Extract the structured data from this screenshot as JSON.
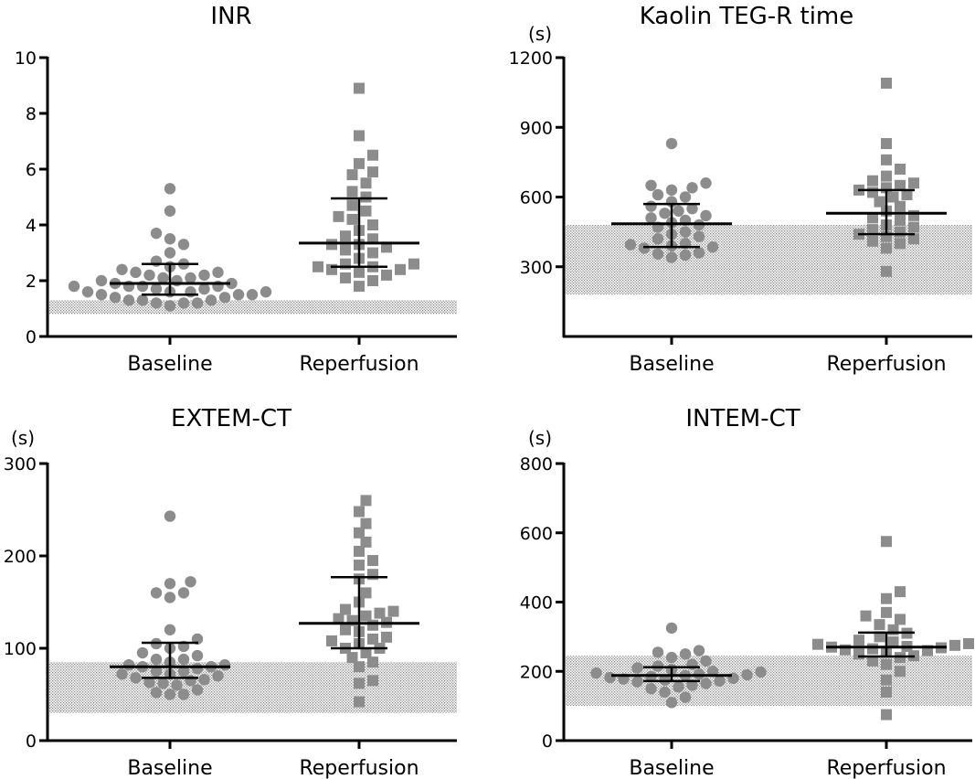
{
  "chart_data": [
    {
      "type": "scatter",
      "title": "INR",
      "ylabel": "",
      "ylim": [
        0,
        10
      ],
      "yticks": [
        0,
        2,
        4,
        6,
        8,
        10
      ],
      "categories": [
        "Baseline",
        "Reperfusion"
      ],
      "reference_range": [
        0.8,
        1.3
      ],
      "series": [
        {
          "values": [
            1.1,
            1.2,
            1.2,
            1.2,
            1.3,
            1.3,
            1.3,
            1.4,
            1.4,
            1.5,
            1.5,
            1.5,
            1.6,
            1.6,
            1.6,
            1.6,
            1.7,
            1.7,
            1.8,
            1.8,
            1.8,
            1.8,
            1.9,
            1.9,
            2.0,
            2.0,
            2.1,
            2.1,
            2.2,
            2.2,
            2.3,
            2.3,
            2.4,
            2.5,
            2.6,
            2.7,
            3.0,
            3.3,
            3.5,
            3.7,
            4.5,
            5.3
          ],
          "median": 1.9,
          "iqr": [
            1.5,
            2.6
          ]
        },
        {
          "values": [
            1.8,
            2.0,
            2.1,
            2.2,
            2.3,
            2.4,
            2.4,
            2.5,
            2.5,
            2.6,
            2.6,
            2.8,
            3.0,
            3.1,
            3.2,
            3.3,
            3.3,
            3.5,
            3.6,
            3.8,
            4.0,
            4.2,
            4.3,
            4.5,
            4.7,
            5.0,
            5.2,
            5.5,
            5.8,
            5.9,
            6.2,
            6.5,
            7.2,
            8.9
          ],
          "median": 3.35,
          "iqr": [
            2.5,
            4.95
          ]
        }
      ]
    },
    {
      "type": "scatter",
      "title": "Kaolin TEG-R time",
      "ylabel": "(s)",
      "ylim": [
        0,
        1200
      ],
      "yticks": [
        300,
        600,
        900,
        1200
      ],
      "categories": [
        "Baseline",
        "Reperfusion"
      ],
      "reference_range": [
        180,
        480
      ],
      "series": [
        {
          "values": [
            340,
            350,
            355,
            360,
            380,
            385,
            390,
            395,
            400,
            420,
            430,
            440,
            450,
            470,
            480,
            490,
            500,
            510,
            520,
            530,
            540,
            550,
            560,
            580,
            600,
            610,
            630,
            640,
            650,
            660,
            830
          ],
          "median": 485,
          "iqr": [
            385,
            570
          ]
        },
        {
          "values": [
            280,
            380,
            400,
            410,
            420,
            430,
            440,
            450,
            460,
            470,
            480,
            500,
            510,
            520,
            540,
            560,
            580,
            600,
            610,
            620,
            630,
            640,
            650,
            660,
            670,
            690,
            720,
            760,
            830,
            1090
          ],
          "median": 530,
          "iqr": [
            440,
            630
          ]
        }
      ]
    },
    {
      "type": "scatter",
      "title": "EXTEM-CT",
      "ylabel": "(s)",
      "ylim": [
        0,
        300
      ],
      "yticks": [
        0,
        100,
        200,
        300
      ],
      "categories": [
        "Baseline",
        "Reperfusion"
      ],
      "reference_range": [
        30,
        85
      ],
      "series": [
        {
          "values": [
            50,
            50,
            52,
            55,
            60,
            62,
            63,
            65,
            66,
            68,
            70,
            72,
            72,
            75,
            75,
            78,
            80,
            80,
            82,
            82,
            85,
            88,
            88,
            92,
            95,
            100,
            102,
            105,
            110,
            120,
            155,
            160,
            160,
            170,
            172,
            243
          ],
          "median": 80,
          "iqr": [
            68,
            106
          ]
        },
        {
          "values": [
            42,
            62,
            65,
            80,
            85,
            90,
            95,
            100,
            100,
            105,
            108,
            110,
            112,
            118,
            120,
            125,
            128,
            130,
            132,
            135,
            138,
            140,
            142,
            150,
            160,
            175,
            180,
            190,
            195,
            205,
            215,
            225,
            235,
            248,
            260
          ],
          "median": 127,
          "iqr": [
            100,
            177
          ]
        }
      ]
    },
    {
      "type": "scatter",
      "title": "INTEM-CT",
      "ylabel": "(s)",
      "ylim": [
        0,
        800
      ],
      "yticks": [
        0,
        200,
        400,
        600,
        800
      ],
      "categories": [
        "Baseline",
        "Reperfusion"
      ],
      "reference_range": [
        100,
        245
      ],
      "series": [
        {
          "values": [
            110,
            125,
            140,
            150,
            155,
            160,
            165,
            170,
            172,
            175,
            178,
            180,
            182,
            185,
            188,
            190,
            192,
            195,
            198,
            200,
            205,
            210,
            215,
            220,
            230,
            240,
            250,
            255,
            260,
            325
          ],
          "median": 188,
          "iqr": [
            172,
            212
          ]
        },
        {
          "values": [
            75,
            140,
            175,
            200,
            220,
            230,
            240,
            245,
            250,
            255,
            260,
            262,
            265,
            268,
            270,
            272,
            275,
            278,
            280,
            285,
            290,
            300,
            310,
            320,
            335,
            350,
            360,
            370,
            410,
            430,
            575
          ],
          "median": 270,
          "iqr": [
            243,
            312
          ]
        }
      ]
    }
  ]
}
